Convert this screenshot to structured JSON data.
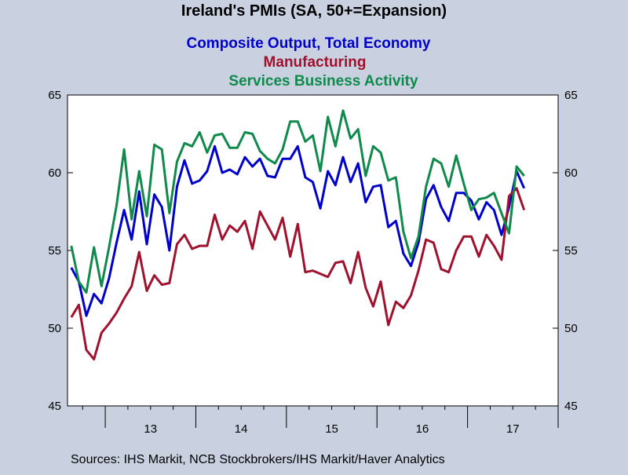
{
  "chart_data": {
    "type": "line",
    "title": "Ireland's PMIs (SA, 50+=Expansion)",
    "x_tick_labels": [
      "13",
      "14",
      "15",
      "16",
      "17"
    ],
    "x_start": "2012-08",
    "x_end": "2017-12",
    "ylim": [
      45,
      65
    ],
    "y_ticks": [
      45,
      50,
      55,
      60,
      65
    ],
    "grid": false,
    "legend_placement": "top-center",
    "series": [
      {
        "name": "Composite Output, Total Economy",
        "color": "#0000cc",
        "values": [
          53.9,
          53.0,
          50.8,
          52.2,
          51.6,
          53.2,
          55.5,
          57.6,
          55.7,
          58.8,
          55.4,
          58.6,
          57.8,
          55.0,
          59.1,
          60.8,
          59.3,
          59.5,
          60.1,
          61.7,
          60.0,
          60.2,
          59.9,
          61.0,
          60.4,
          60.9,
          59.8,
          59.7,
          60.9,
          60.9,
          61.7,
          59.7,
          59.4,
          57.7,
          60.1,
          59.2,
          61.0,
          59.4,
          60.6,
          58.1,
          59.1,
          59.2,
          56.5,
          56.9,
          54.8,
          54.0,
          55.5,
          58.3,
          59.2,
          57.8,
          56.9,
          58.7,
          58.7,
          58.2,
          57.0,
          58.1,
          57.6,
          56.0,
          57.8,
          60.1,
          59.0
        ]
      },
      {
        "name": "Manufacturing",
        "color": "#a0112e",
        "values": [
          50.7,
          51.5,
          48.6,
          48.0,
          49.7,
          50.3,
          51.0,
          51.9,
          52.7,
          54.9,
          52.4,
          53.4,
          52.8,
          52.9,
          55.4,
          56.0,
          55.1,
          55.3,
          55.3,
          57.3,
          55.7,
          56.6,
          56.2,
          56.9,
          55.1,
          57.5,
          56.6,
          55.7,
          57.1,
          54.6,
          56.7,
          53.6,
          53.7,
          53.5,
          53.3,
          54.2,
          54.3,
          52.9,
          54.9,
          52.6,
          51.4,
          53.0,
          50.2,
          51.7,
          51.3,
          52.1,
          53.7,
          55.7,
          55.5,
          53.8,
          53.6,
          55.0,
          55.9,
          55.9,
          54.6,
          56.0,
          55.3,
          54.4,
          58.5,
          59.0,
          57.6
        ]
      },
      {
        "name": "Services Business Activity",
        "color": "#0f8a4b",
        "values": [
          55.3,
          53.0,
          52.3,
          55.2,
          52.7,
          55.2,
          57.9,
          61.5,
          57.0,
          60.1,
          57.2,
          61.8,
          61.5,
          57.4,
          60.7,
          61.9,
          61.7,
          62.6,
          61.3,
          62.4,
          62.5,
          61.6,
          61.6,
          62.6,
          62.5,
          61.4,
          60.9,
          60.6,
          61.5,
          63.3,
          63.3,
          62.0,
          62.4,
          60.1,
          63.6,
          61.7,
          64.0,
          62.2,
          62.8,
          59.8,
          61.7,
          61.3,
          59.5,
          59.7,
          56.2,
          54.5,
          55.9,
          59.1,
          60.9,
          60.6,
          59.1,
          61.1,
          59.3,
          57.6,
          58.3,
          58.4,
          58.7,
          57.4,
          56.1,
          60.4,
          59.8
        ]
      }
    ]
  },
  "sources": "Sources:  IHS Markit, NCB Stockbrokers/IHS Markit/Haver Analytics"
}
